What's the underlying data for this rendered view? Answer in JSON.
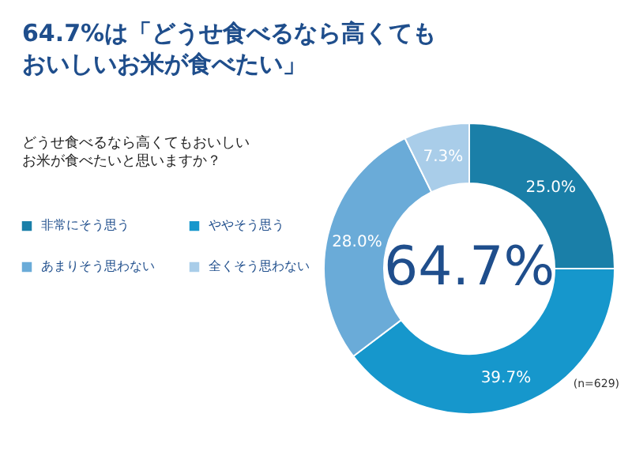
{
  "chart_data": {
    "type": "donut",
    "title": "64.7%は「どうせ食べるなら高くてもおいしいお米が食べたい」",
    "subtitle": "どうせ食べるなら高くてもおいしいお米が食べたいと思いますか？",
    "categories": [
      "非常にそう思う",
      "ややそう思う",
      "あまりそう思わない",
      "全くそう思わない"
    ],
    "values": [
      25.0,
      39.7,
      28.0,
      7.3
    ],
    "colors": [
      "#1a7fa8",
      "#1697cc",
      "#6aabd8",
      "#a9cde9"
    ],
    "value_labels": [
      "25.0%",
      "39.7%",
      "28.0%",
      "7.3%"
    ],
    "legend": "left",
    "annotations": [
      "64.7%",
      "(n=629)"
    ]
  }
}
